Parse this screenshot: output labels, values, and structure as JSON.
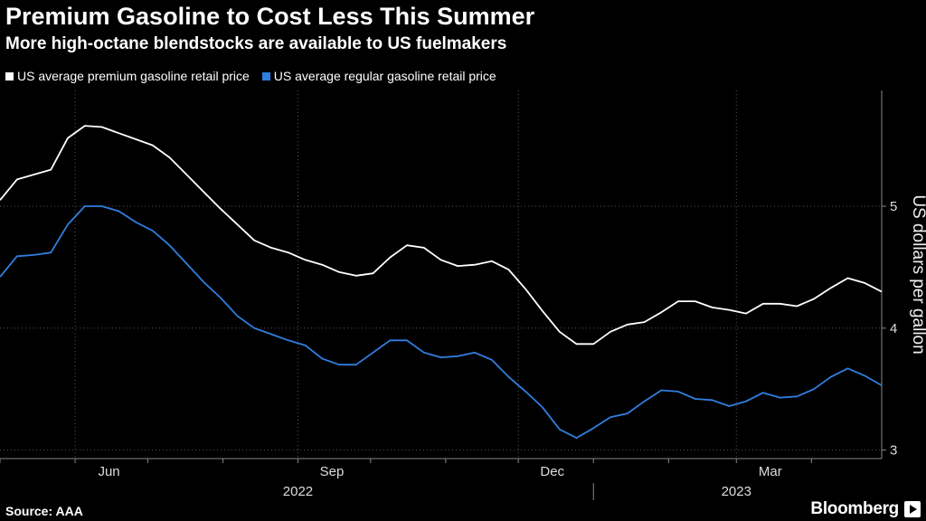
{
  "header": {
    "title": "Premium Gasoline to Cost Less This Summer",
    "subtitle": "More high-octane blendstocks are available to US fuelmakers"
  },
  "footer": {
    "source": "Source: AAA",
    "brand": "Bloomberg"
  },
  "colors": {
    "background": "#000000",
    "premium": "#ffffff",
    "regular": "#2f7fe0",
    "grid": "#555555"
  },
  "chart_data": {
    "type": "line",
    "title": "Premium Gasoline to Cost Less This Summer",
    "subtitle": "More high-octane blendstocks are available to US fuelmakers",
    "xlabel": "",
    "ylabel": "US dollars per gallon",
    "x_ticks": [
      "Jun",
      "Sep",
      "Dec",
      "Mar"
    ],
    "year_labels": [
      "2022",
      "2023"
    ],
    "yticks": [
      3,
      4,
      5
    ],
    "ylim": [
      2.93,
      5.95
    ],
    "x_start": "2022-05-01",
    "x_end": "2023-04-30",
    "grid": true,
    "legend": "top-left",
    "series": [
      {
        "name": "US average premium gasoline retail price",
        "color": "#ffffff",
        "points": [
          [
            "2022-05-01",
            5.05
          ],
          [
            "2022-05-08",
            5.22
          ],
          [
            "2022-05-15",
            5.26
          ],
          [
            "2022-05-22",
            5.3
          ],
          [
            "2022-05-29",
            5.56
          ],
          [
            "2022-06-05",
            5.66
          ],
          [
            "2022-06-12",
            5.65
          ],
          [
            "2022-06-19",
            5.6
          ],
          [
            "2022-06-26",
            5.55
          ],
          [
            "2022-07-03",
            5.5
          ],
          [
            "2022-07-10",
            5.4
          ],
          [
            "2022-07-17",
            5.26
          ],
          [
            "2022-07-24",
            5.12
          ],
          [
            "2022-07-31",
            4.98
          ],
          [
            "2022-08-07",
            4.85
          ],
          [
            "2022-08-14",
            4.72
          ],
          [
            "2022-08-21",
            4.66
          ],
          [
            "2022-08-28",
            4.62
          ],
          [
            "2022-09-04",
            4.56
          ],
          [
            "2022-09-11",
            4.52
          ],
          [
            "2022-09-18",
            4.46
          ],
          [
            "2022-09-25",
            4.43
          ],
          [
            "2022-10-02",
            4.45
          ],
          [
            "2022-10-09",
            4.58
          ],
          [
            "2022-10-16",
            4.68
          ],
          [
            "2022-10-23",
            4.66
          ],
          [
            "2022-10-30",
            4.56
          ],
          [
            "2022-11-06",
            4.51
          ],
          [
            "2022-11-13",
            4.52
          ],
          [
            "2022-11-20",
            4.55
          ],
          [
            "2022-11-27",
            4.48
          ],
          [
            "2022-12-04",
            4.32
          ],
          [
            "2022-12-11",
            4.14
          ],
          [
            "2022-12-18",
            3.97
          ],
          [
            "2022-12-25",
            3.87
          ],
          [
            "2023-01-01",
            3.87
          ],
          [
            "2023-01-08",
            3.97
          ],
          [
            "2023-01-15",
            4.03
          ],
          [
            "2023-01-22",
            4.05
          ],
          [
            "2023-01-29",
            4.13
          ],
          [
            "2023-02-05",
            4.22
          ],
          [
            "2023-02-12",
            4.22
          ],
          [
            "2023-02-19",
            4.17
          ],
          [
            "2023-02-26",
            4.15
          ],
          [
            "2023-03-05",
            4.12
          ],
          [
            "2023-03-12",
            4.2
          ],
          [
            "2023-03-19",
            4.2
          ],
          [
            "2023-03-26",
            4.18
          ],
          [
            "2023-04-02",
            4.24
          ],
          [
            "2023-04-09",
            4.33
          ],
          [
            "2023-04-16",
            4.41
          ],
          [
            "2023-04-23",
            4.37
          ],
          [
            "2023-04-30",
            4.3
          ]
        ]
      },
      {
        "name": "US average regular gasoline retail price",
        "color": "#2f7fe0",
        "points": [
          [
            "2022-05-01",
            4.42
          ],
          [
            "2022-05-08",
            4.59
          ],
          [
            "2022-05-15",
            4.6
          ],
          [
            "2022-05-22",
            4.62
          ],
          [
            "2022-05-29",
            4.85
          ],
          [
            "2022-06-05",
            5.0
          ],
          [
            "2022-06-12",
            5.0
          ],
          [
            "2022-06-19",
            4.96
          ],
          [
            "2022-06-26",
            4.87
          ],
          [
            "2022-07-03",
            4.8
          ],
          [
            "2022-07-10",
            4.68
          ],
          [
            "2022-07-17",
            4.53
          ],
          [
            "2022-07-24",
            4.38
          ],
          [
            "2022-07-31",
            4.25
          ],
          [
            "2022-08-07",
            4.1
          ],
          [
            "2022-08-14",
            4.0
          ],
          [
            "2022-08-21",
            3.95
          ],
          [
            "2022-08-28",
            3.9
          ],
          [
            "2022-09-04",
            3.86
          ],
          [
            "2022-09-11",
            3.75
          ],
          [
            "2022-09-18",
            3.7
          ],
          [
            "2022-09-25",
            3.7
          ],
          [
            "2022-10-02",
            3.8
          ],
          [
            "2022-10-09",
            3.9
          ],
          [
            "2022-10-16",
            3.9
          ],
          [
            "2022-10-23",
            3.8
          ],
          [
            "2022-10-30",
            3.76
          ],
          [
            "2022-11-06",
            3.77
          ],
          [
            "2022-11-13",
            3.8
          ],
          [
            "2022-11-20",
            3.74
          ],
          [
            "2022-11-27",
            3.6
          ],
          [
            "2022-12-04",
            3.48
          ],
          [
            "2022-12-11",
            3.35
          ],
          [
            "2022-12-18",
            3.17
          ],
          [
            "2022-12-25",
            3.1
          ],
          [
            "2023-01-01",
            3.18
          ],
          [
            "2023-01-08",
            3.27
          ],
          [
            "2023-01-15",
            3.3
          ],
          [
            "2023-01-22",
            3.4
          ],
          [
            "2023-01-29",
            3.49
          ],
          [
            "2023-02-05",
            3.48
          ],
          [
            "2023-02-12",
            3.42
          ],
          [
            "2023-02-19",
            3.41
          ],
          [
            "2023-02-26",
            3.36
          ],
          [
            "2023-03-05",
            3.4
          ],
          [
            "2023-03-12",
            3.47
          ],
          [
            "2023-03-19",
            3.43
          ],
          [
            "2023-03-26",
            3.44
          ],
          [
            "2023-04-02",
            3.5
          ],
          [
            "2023-04-09",
            3.6
          ],
          [
            "2023-04-16",
            3.67
          ],
          [
            "2023-04-23",
            3.61
          ],
          [
            "2023-04-30",
            3.53
          ]
        ]
      }
    ]
  }
}
